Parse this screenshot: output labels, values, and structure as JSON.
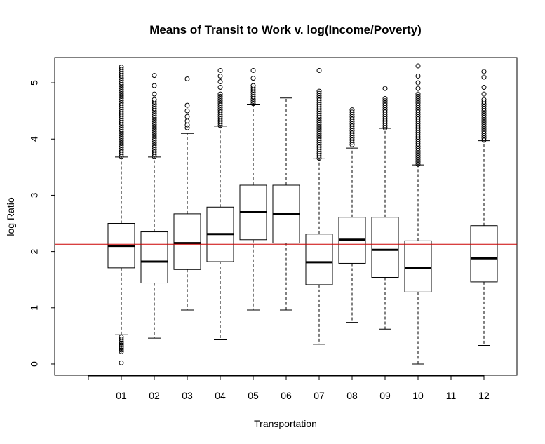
{
  "chart_data": {
    "type": "boxplot",
    "title": "Means of Transit to Work v. log(Income/Poverty)",
    "xlabel": "Transportation",
    "ylabel": "log Ratio",
    "x_tick_labels": [
      "",
      "01",
      "02",
      "03",
      "04",
      "05",
      "06",
      "07",
      "08",
      "09",
      "10",
      "11",
      "12"
    ],
    "y_ticks": [
      0,
      1,
      2,
      3,
      4,
      5
    ],
    "ylim": [
      -0.2,
      5.45
    ],
    "reference_line": {
      "y": 2.13,
      "color": "#cc0000"
    },
    "boxes": [
      {
        "category": "01",
        "min": 0.52,
        "q1": 1.71,
        "median": 2.1,
        "q3": 2.5,
        "max": 3.68,
        "outliers_high_range": [
          3.69,
          5.28
        ],
        "outliers_low": [
          0.48,
          0.44,
          0.4,
          0.37,
          0.34,
          0.31,
          0.28,
          0.25,
          0.22,
          0.02
        ]
      },
      {
        "category": "02",
        "min": 0.46,
        "q1": 1.44,
        "median": 1.82,
        "q3": 2.35,
        "max": 3.68,
        "outliers_high_range": [
          3.69,
          4.7
        ],
        "outliers_high": [
          4.8,
          4.95,
          5.13
        ],
        "outliers_low": []
      },
      {
        "category": "03",
        "min": 0.96,
        "q1": 1.68,
        "median": 2.15,
        "q3": 2.67,
        "max": 4.1,
        "outliers_high": [
          4.2,
          4.25,
          4.32,
          4.4,
          4.5,
          4.6,
          5.07
        ],
        "outliers_low": []
      },
      {
        "category": "04",
        "min": 0.43,
        "q1": 1.82,
        "median": 2.31,
        "q3": 2.79,
        "max": 4.23,
        "outliers_high_range": [
          4.24,
          4.8
        ],
        "outliers_high": [
          4.92,
          5.02,
          5.12,
          5.22
        ],
        "outliers_low": []
      },
      {
        "category": "05",
        "min": 0.96,
        "q1": 2.21,
        "median": 2.7,
        "q3": 3.18,
        "max": 4.62,
        "outliers_high_range": [
          4.63,
          4.95
        ],
        "outliers_high": [
          5.08,
          5.22
        ],
        "outliers_low": []
      },
      {
        "category": "06",
        "min": 0.96,
        "q1": 2.15,
        "median": 2.67,
        "q3": 3.18,
        "max": 4.73,
        "outliers_high": [],
        "outliers_low": []
      },
      {
        "category": "07",
        "min": 0.35,
        "q1": 1.41,
        "median": 1.81,
        "q3": 2.31,
        "max": 3.65,
        "outliers_high_range": [
          3.66,
          4.85
        ],
        "outliers_high": [
          5.22
        ],
        "outliers_low": []
      },
      {
        "category": "08",
        "min": 0.74,
        "q1": 1.79,
        "median": 2.21,
        "q3": 2.61,
        "max": 3.84,
        "outliers_high_range": [
          3.9,
          4.52
        ],
        "outliers_low": []
      },
      {
        "category": "09",
        "min": 0.62,
        "q1": 1.54,
        "median": 2.03,
        "q3": 2.61,
        "max": 4.19,
        "outliers_high_range": [
          4.2,
          4.72
        ],
        "outliers_high": [
          4.9
        ],
        "outliers_low": []
      },
      {
        "category": "10",
        "min": 0.0,
        "q1": 1.28,
        "median": 1.71,
        "q3": 2.19,
        "max": 3.54,
        "outliers_high_range": [
          3.55,
          4.8
        ],
        "outliers_high": [
          4.9,
          5.0,
          5.12,
          5.3
        ],
        "outliers_low": []
      },
      {
        "category": "12",
        "min": 0.33,
        "q1": 1.46,
        "median": 1.88,
        "q3": 2.46,
        "max": 3.97,
        "outliers_high_range": [
          3.98,
          4.7
        ],
        "outliers_high": [
          4.8,
          4.92,
          5.1,
          5.2
        ],
        "outliers_low": []
      }
    ]
  }
}
